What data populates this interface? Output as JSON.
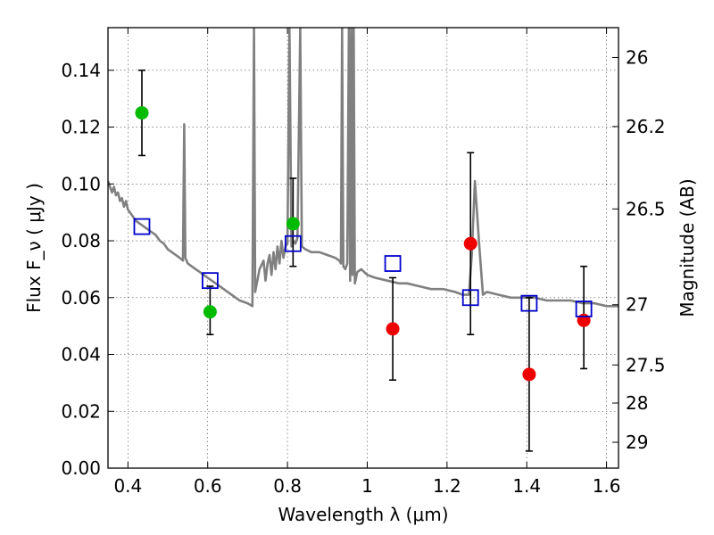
{
  "chart_data": {
    "type": "scatter",
    "xlabel": "Wavelength  λ (μm)",
    "ylabel_left": "Flux  F_ν  ( μJy )",
    "ylabel_right": "Magnitude (AB)",
    "xlim": [
      0.35,
      1.63
    ],
    "ylim": [
      0.0,
      0.155
    ],
    "grid": true,
    "x_ticks": [
      0.4,
      0.6,
      0.8,
      1.0,
      1.2,
      1.4,
      1.6
    ],
    "x_tick_labels": [
      "0.4",
      "0.6",
      "0.8",
      "1",
      "1.2",
      "1.4",
      "1.6"
    ],
    "y_ticks": [
      0.0,
      0.02,
      0.04,
      0.06,
      0.08,
      0.1,
      0.12,
      0.14
    ],
    "y_tick_labels": [
      "0.00",
      "0.02",
      "0.04",
      "0.06",
      "0.08",
      "0.10",
      "0.12",
      "0.14"
    ],
    "right_ticks": [
      {
        "label": "26",
        "flux": 0.1445
      },
      {
        "label": "26.2",
        "flux": 0.1202
      },
      {
        "label": "26.5",
        "flux": 0.0912
      },
      {
        "label": "27",
        "flux": 0.0575
      },
      {
        "label": "27.5",
        "flux": 0.0363
      },
      {
        "label": "28",
        "flux": 0.0229
      },
      {
        "label": "29",
        "flux": 0.0091
      }
    ],
    "series": [
      {
        "marker": "circle",
        "color": "#00bb00",
        "points": [
          {
            "x": 0.435,
            "y": 0.125,
            "err_low": 0.11,
            "err_high": 0.14
          },
          {
            "x": 0.606,
            "y": 0.055,
            "err_low": 0.047,
            "err_high": 0.064
          },
          {
            "x": 0.814,
            "y": 0.086,
            "err_low": 0.071,
            "err_high": 0.102
          }
        ]
      },
      {
        "marker": "circle",
        "color": "#ee0000",
        "points": [
          {
            "x": 1.064,
            "y": 0.049,
            "err_low": 0.031,
            "err_high": 0.067
          },
          {
            "x": 1.259,
            "y": 0.079,
            "err_low": 0.047,
            "err_high": 0.111
          },
          {
            "x": 1.406,
            "y": 0.033,
            "err_low": 0.006,
            "err_high": 0.06
          },
          {
            "x": 1.543,
            "y": 0.052,
            "err_low": 0.035,
            "err_high": 0.071
          }
        ]
      },
      {
        "marker": "open-square",
        "color": "#0000cc",
        "points": [
          {
            "x": 0.435,
            "y": 0.085
          },
          {
            "x": 0.606,
            "y": 0.066
          },
          {
            "x": 0.814,
            "y": 0.079
          },
          {
            "x": 1.064,
            "y": 0.072
          },
          {
            "x": 1.259,
            "y": 0.06
          },
          {
            "x": 1.406,
            "y": 0.058
          },
          {
            "x": 1.543,
            "y": 0.056
          }
        ]
      },
      {
        "marker": "line",
        "color": "#808080",
        "points": [
          [
            0.35,
            0.101
          ],
          [
            0.36,
            0.097
          ],
          [
            0.365,
            0.099
          ],
          [
            0.37,
            0.096
          ],
          [
            0.375,
            0.097
          ],
          [
            0.38,
            0.094
          ],
          [
            0.385,
            0.095
          ],
          [
            0.39,
            0.092
          ],
          [
            0.395,
            0.094
          ],
          [
            0.4,
            0.091
          ],
          [
            0.41,
            0.089
          ],
          [
            0.42,
            0.087
          ],
          [
            0.43,
            0.086
          ],
          [
            0.44,
            0.085
          ],
          [
            0.45,
            0.084
          ],
          [
            0.46,
            0.083
          ],
          [
            0.47,
            0.082
          ],
          [
            0.48,
            0.08
          ],
          [
            0.49,
            0.079
          ],
          [
            0.5,
            0.077
          ],
          [
            0.51,
            0.076
          ],
          [
            0.52,
            0.075
          ],
          [
            0.53,
            0.074
          ],
          [
            0.538,
            0.073
          ],
          [
            0.541,
            0.121
          ],
          [
            0.544,
            0.074
          ],
          [
            0.55,
            0.072
          ],
          [
            0.56,
            0.071
          ],
          [
            0.57,
            0.07
          ],
          [
            0.58,
            0.069
          ],
          [
            0.59,
            0.068
          ],
          [
            0.6,
            0.067
          ],
          [
            0.62,
            0.065
          ],
          [
            0.64,
            0.063
          ],
          [
            0.66,
            0.061
          ],
          [
            0.68,
            0.059
          ],
          [
            0.7,
            0.058
          ],
          [
            0.712,
            0.057
          ],
          [
            0.716,
            0.155
          ],
          [
            0.719,
            0.062
          ],
          [
            0.73,
            0.07
          ],
          [
            0.74,
            0.073
          ],
          [
            0.745,
            0.066
          ],
          [
            0.75,
            0.072
          ],
          [
            0.755,
            0.075
          ],
          [
            0.76,
            0.068
          ],
          [
            0.765,
            0.076
          ],
          [
            0.77,
            0.07
          ],
          [
            0.775,
            0.078
          ],
          [
            0.78,
            0.072
          ],
          [
            0.785,
            0.08
          ],
          [
            0.79,
            0.074
          ],
          [
            0.795,
            0.078
          ],
          [
            0.8,
            0.079
          ],
          [
            0.805,
            0.155
          ],
          [
            0.81,
            0.078
          ],
          [
            0.815,
            0.08
          ],
          [
            0.82,
            0.079
          ],
          [
            0.825,
            0.081
          ],
          [
            0.832,
            0.155
          ],
          [
            0.836,
            0.078
          ],
          [
            0.845,
            0.077
          ],
          [
            0.86,
            0.076
          ],
          [
            0.88,
            0.076
          ],
          [
            0.9,
            0.075
          ],
          [
            0.92,
            0.074
          ],
          [
            0.93,
            0.073
          ],
          [
            0.934,
            0.072
          ],
          [
            0.937,
            0.155
          ],
          [
            0.94,
            0.071
          ],
          [
            0.945,
            0.07
          ],
          [
            0.95,
            0.072
          ],
          [
            0.954,
            0.155
          ],
          [
            0.957,
            0.066
          ],
          [
            0.96,
            0.155
          ],
          [
            0.963,
            0.068
          ],
          [
            0.966,
            0.155
          ],
          [
            0.969,
            0.065
          ],
          [
            0.975,
            0.069
          ],
          [
            0.985,
            0.07
          ],
          [
            1.0,
            0.068
          ],
          [
            1.02,
            0.067
          ],
          [
            1.05,
            0.066
          ],
          [
            1.08,
            0.065
          ],
          [
            1.1,
            0.065
          ],
          [
            1.13,
            0.064
          ],
          [
            1.16,
            0.063
          ],
          [
            1.19,
            0.063
          ],
          [
            1.22,
            0.062
          ],
          [
            1.24,
            0.061
          ],
          [
            1.255,
            0.061
          ],
          [
            1.262,
            0.075
          ],
          [
            1.27,
            0.101
          ],
          [
            1.28,
            0.08
          ],
          [
            1.29,
            0.061
          ],
          [
            1.3,
            0.062
          ],
          [
            1.33,
            0.061
          ],
          [
            1.36,
            0.06
          ],
          [
            1.39,
            0.06
          ],
          [
            1.42,
            0.06
          ],
          [
            1.45,
            0.059
          ],
          [
            1.48,
            0.059
          ],
          [
            1.51,
            0.059
          ],
          [
            1.54,
            0.058
          ],
          [
            1.57,
            0.058
          ],
          [
            1.6,
            0.057
          ],
          [
            1.63,
            0.057
          ]
        ]
      }
    ]
  }
}
